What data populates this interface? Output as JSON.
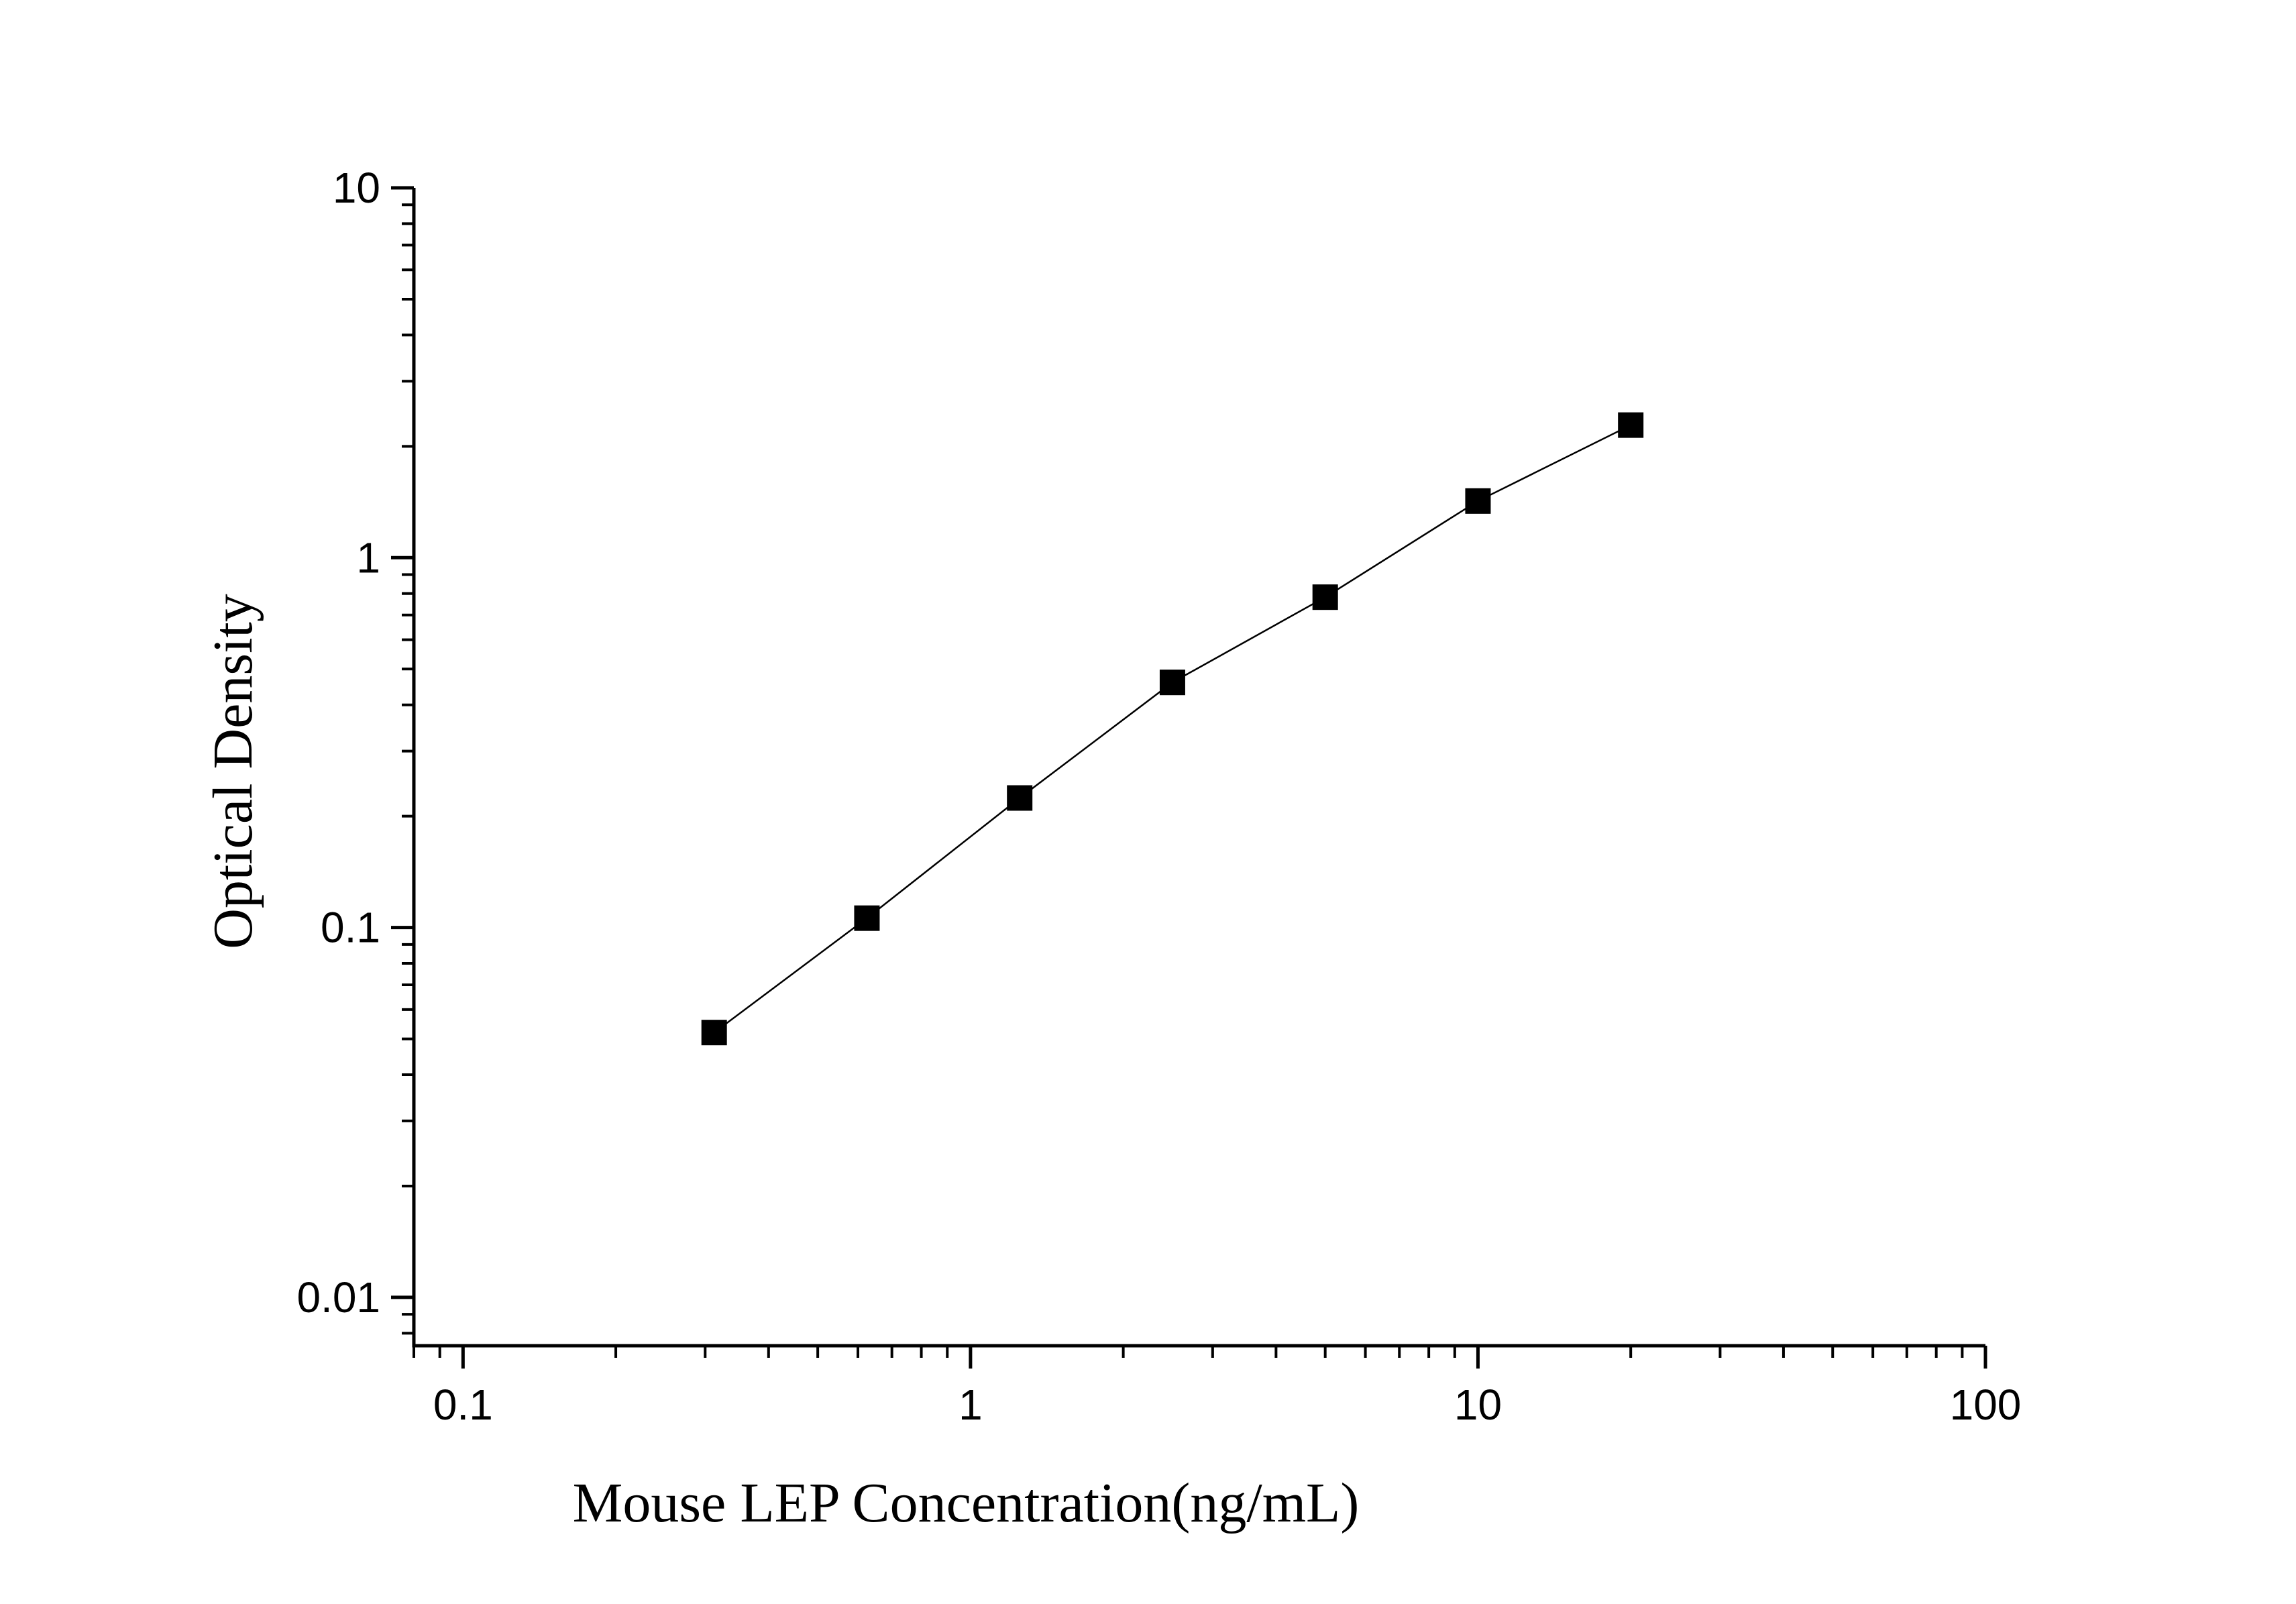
{
  "chart_data": {
    "type": "scatter",
    "xlabel": "Mouse LEP Concentration(ng/mL)",
    "ylabel": "Optical Density",
    "x_scale": "log",
    "y_scale": "log",
    "xlim": [
      0.08,
      100
    ],
    "ylim": [
      0.0074,
      10
    ],
    "x_ticks": [
      {
        "value": 0.1,
        "label": "0.1"
      },
      {
        "value": 1,
        "label": "1"
      },
      {
        "value": 10,
        "label": "10"
      },
      {
        "value": 100,
        "label": "100"
      }
    ],
    "y_ticks": [
      {
        "value": 0.01,
        "label": "0.01"
      },
      {
        "value": 0.1,
        "label": "0.1"
      },
      {
        "value": 1,
        "label": "1"
      },
      {
        "value": 10,
        "label": "10"
      }
    ],
    "grid": false,
    "legend": "none",
    "series": [
      {
        "marker": "square",
        "color": "#000000",
        "connected": true,
        "x": [
          0.3125,
          0.625,
          1.25,
          2.5,
          5,
          10,
          20
        ],
        "y": [
          0.052,
          0.106,
          0.224,
          0.46,
          0.782,
          1.423,
          2.283
        ]
      }
    ]
  }
}
